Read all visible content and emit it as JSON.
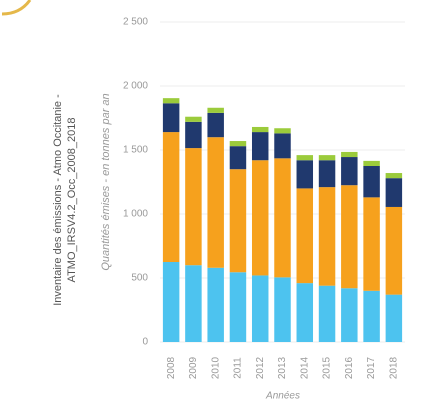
{
  "chart_data": {
    "type": "stacked_bar",
    "y_label": "Quantités émises - en tonnes par an",
    "x_label": "Années",
    "note": [
      "Inventaire des émissions - Atmo Occitanie -",
      "ATMO_IRSV4.2_Occ_2008_2018"
    ],
    "categories": [
      "2008",
      "2009",
      "2010",
      "2011",
      "2012",
      "2013",
      "2014",
      "2015",
      "2016",
      "2017",
      "2018"
    ],
    "series": [
      {
        "color": "#4dc3ef",
        "values": [
          625,
          600,
          580,
          545,
          520,
          505,
          460,
          440,
          420,
          400,
          370
        ]
      },
      {
        "color": "#f6a11d",
        "values": [
          1015,
          915,
          1020,
          805,
          900,
          930,
          740,
          770,
          805,
          730,
          685
        ]
      },
      {
        "color": "#20396e",
        "values": [
          225,
          205,
          190,
          180,
          220,
          195,
          220,
          210,
          220,
          245,
          225
        ]
      },
      {
        "color": "#9bcb3b",
        "values": [
          40,
          40,
          40,
          40,
          40,
          40,
          40,
          40,
          40,
          40,
          40
        ]
      }
    ],
    "ylim": [
      0,
      2500
    ],
    "yticks": [
      0,
      500,
      {
        "value": 1000,
        "label": "1 000"
      },
      {
        "value": 1500,
        "label": "1 500"
      },
      {
        "value": 2000,
        "label": "2 000"
      },
      {
        "value": 2500,
        "label": "2 500"
      }
    ],
    "grid": true
  }
}
